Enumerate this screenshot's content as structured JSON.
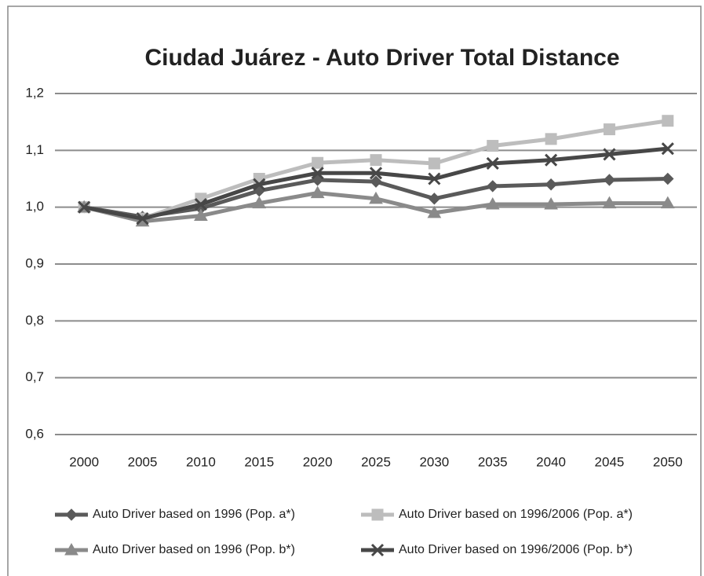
{
  "chart_data": {
    "type": "line",
    "title": "Ciudad Juárez - Auto Driver Total Distance",
    "categories": [
      "2000",
      "2005",
      "2010",
      "2015",
      "2020",
      "2025",
      "2030",
      "2035",
      "2040",
      "2045",
      "2050"
    ],
    "series": [
      {
        "name": "Auto Driver based on 1996  (Pop. a*)",
        "color": "#5a5a5a",
        "marker": "diamond",
        "values": [
          1.0,
          0.983,
          0.998,
          1.029,
          1.048,
          1.045,
          1.015,
          1.037,
          1.04,
          1.048,
          1.05
        ]
      },
      {
        "name": "Auto Driver based on 1996/2006  (Pop. a*)",
        "color": "#bdbdbd",
        "marker": "square",
        "values": [
          1.0,
          0.98,
          1.015,
          1.05,
          1.078,
          1.083,
          1.077,
          1.108,
          1.12,
          1.137,
          1.152
        ]
      },
      {
        "name": "Auto Driver based on 1996  (Pop. b*)",
        "color": "#8a8a8a",
        "marker": "triangle",
        "values": [
          1.0,
          0.975,
          0.985,
          1.007,
          1.025,
          1.015,
          0.99,
          1.005,
          1.005,
          1.007,
          1.007
        ]
      },
      {
        "name": "Auto Driver based on 1996/2006  (Pop. b*)",
        "color": "#474747",
        "marker": "x",
        "values": [
          1.0,
          0.98,
          1.005,
          1.04,
          1.06,
          1.06,
          1.05,
          1.077,
          1.083,
          1.093,
          1.103
        ]
      }
    ],
    "ylim": [
      0.6,
      1.2
    ],
    "yticks": [
      {
        "value": 0.6,
        "label": "0,6"
      },
      {
        "value": 0.7,
        "label": "0,7"
      },
      {
        "value": 0.8,
        "label": "0,8"
      },
      {
        "value": 0.9,
        "label": "0,9"
      },
      {
        "value": 1.0,
        "label": "1,0"
      },
      {
        "value": 1.1,
        "label": "1,1"
      },
      {
        "value": 1.2,
        "label": "1,2"
      }
    ],
    "grid": true,
    "legend": "bottom"
  }
}
